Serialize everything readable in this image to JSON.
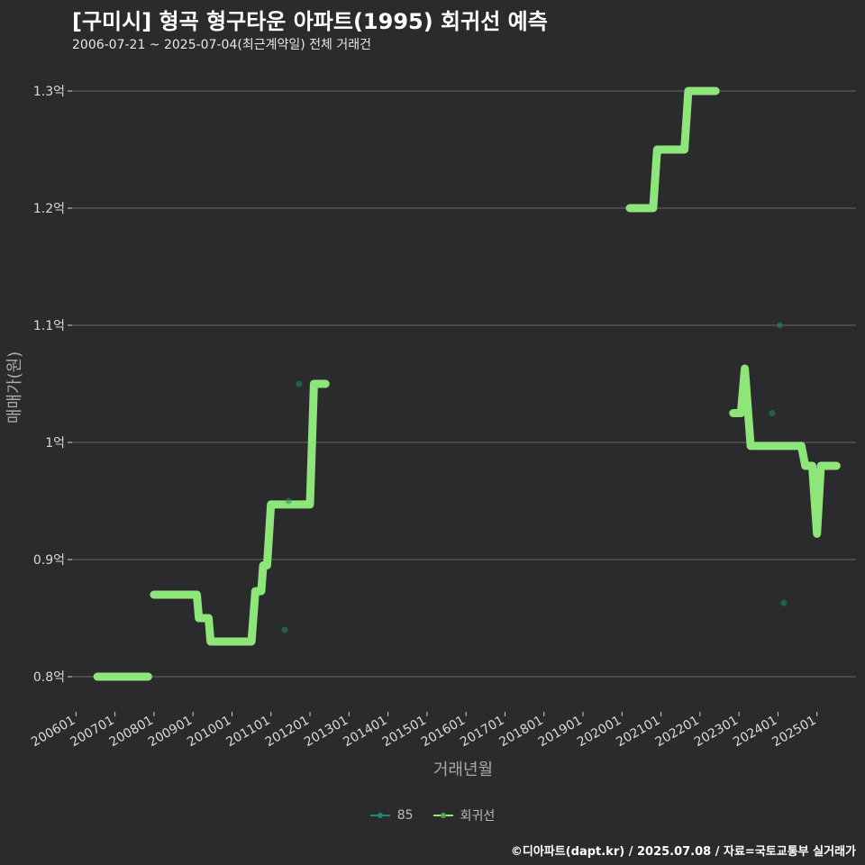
{
  "title": "[구미시] 형곡 형구타운 아파트(1995) 회귀선 예측",
  "subtitle": "2006-07-21 ~ 2025-07-04(최근계약일) 전체 거래건",
  "caption": "©디아파트(dapt.kr) / 2025.07.08 / 자료=국토교통부 실거래가",
  "colors": {
    "background": "#2b2a2c",
    "grid": "#6a6a6a",
    "series_85": "#1f8a70",
    "regression": "#8ee67a"
  },
  "legend": [
    {
      "label": "85",
      "color": "#1f8a70"
    },
    {
      "label": "회귀선",
      "color": "#8ee67a"
    }
  ],
  "chart_data": {
    "type": "line",
    "xlabel": "거래년월",
    "ylabel": "매매가(원)",
    "xlim": [
      2005.9,
      2026.0
    ],
    "ylim": [
      0.77,
      1.32
    ],
    "y_ticks": [
      {
        "value": 0.8,
        "label": "0.8억"
      },
      {
        "value": 0.9,
        "label": "0.9억"
      },
      {
        "value": 1.0,
        "label": "1억"
      },
      {
        "value": 1.1,
        "label": "1.1억"
      },
      {
        "value": 1.2,
        "label": "1.2억"
      },
      {
        "value": 1.3,
        "label": "1.3억"
      }
    ],
    "x_ticks": [
      "200601",
      "200701",
      "200801",
      "200901",
      "201001",
      "201101",
      "201201",
      "201301",
      "201401",
      "201501",
      "201601",
      "201701",
      "201801",
      "201901",
      "202001",
      "202101",
      "202201",
      "202301",
      "202401",
      "202501"
    ],
    "series": [
      {
        "name": "85",
        "kind": "scatter",
        "points": [
          {
            "x": 2011.35,
            "y": 0.84
          },
          {
            "x": 2011.72,
            "y": 1.05
          },
          {
            "x": 2011.45,
            "y": 0.95
          },
          {
            "x": 2023.85,
            "y": 1.025
          },
          {
            "x": 2024.05,
            "y": 1.1
          },
          {
            "x": 2024.15,
            "y": 0.863
          }
        ]
      },
      {
        "name": "회귀선",
        "kind": "line",
        "segments": [
          [
            [
              2006.55,
              0.8
            ],
            [
              2007.85,
              0.8
            ]
          ],
          [
            [
              2008.0,
              0.87
            ],
            [
              2009.1,
              0.87
            ],
            [
              2009.15,
              0.85
            ],
            [
              2009.4,
              0.85
            ],
            [
              2009.45,
              0.83
            ],
            [
              2010.5,
              0.83
            ],
            [
              2010.6,
              0.873
            ],
            [
              2010.75,
              0.873
            ],
            [
              2010.8,
              0.895
            ],
            [
              2010.9,
              0.895
            ],
            [
              2011.0,
              0.947
            ],
            [
              2012.0,
              0.947
            ],
            [
              2012.1,
              1.05
            ],
            [
              2012.4,
              1.05
            ]
          ],
          [
            [
              2020.2,
              1.2
            ],
            [
              2020.8,
              1.2
            ],
            [
              2020.9,
              1.25
            ],
            [
              2021.6,
              1.25
            ],
            [
              2021.7,
              1.3
            ],
            [
              2022.4,
              1.3
            ]
          ],
          [
            [
              2022.85,
              1.025
            ],
            [
              2023.05,
              1.025
            ],
            [
              2023.15,
              1.063
            ],
            [
              2023.3,
              0.997
            ],
            [
              2024.6,
              0.997
            ],
            [
              2024.7,
              0.98
            ],
            [
              2024.88,
              0.98
            ],
            [
              2025.0,
              0.922
            ],
            [
              2025.1,
              0.98
            ],
            [
              2025.5,
              0.98
            ]
          ]
        ]
      }
    ]
  }
}
